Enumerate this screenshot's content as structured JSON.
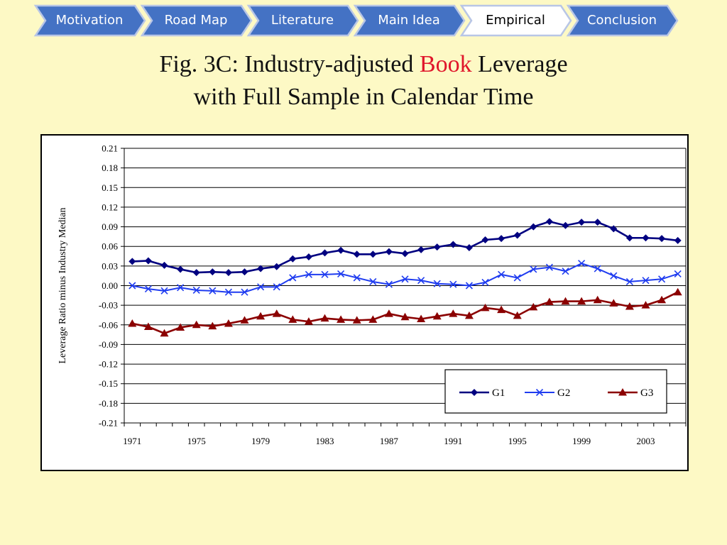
{
  "nav": {
    "tabs": [
      {
        "label": "Motivation",
        "active": false
      },
      {
        "label": "Road Map",
        "active": false
      },
      {
        "label": "Literature",
        "active": false
      },
      {
        "label": "Main Idea",
        "active": false
      },
      {
        "label": "Empirical",
        "active": true
      },
      {
        "label": "Conclusion",
        "active": false
      }
    ]
  },
  "title": {
    "line1_prefix": "Fig. 3C: Industry-adjusted ",
    "line1_highlight": "Book",
    "line1_suffix": " Leverage",
    "line2": "with Full Sample in Calendar Time"
  },
  "colors": {
    "background": "#fdf9c5",
    "nav_fill": "#4472c4",
    "nav_active_fill": "#ffffff",
    "title_highlight": "#e0162b",
    "g1": "#000080",
    "g2": "#1f3cf0",
    "g3": "#8b0000"
  },
  "chart_data": {
    "type": "line",
    "title": "",
    "xlabel": "",
    "ylabel": "Leverage Ratio minus Industry Median",
    "x": [
      1971,
      1972,
      1973,
      1974,
      1975,
      1976,
      1977,
      1978,
      1979,
      1980,
      1981,
      1982,
      1983,
      1984,
      1985,
      1986,
      1987,
      1988,
      1989,
      1990,
      1991,
      1992,
      1993,
      1994,
      1995,
      1996,
      1997,
      1998,
      1999,
      2000,
      2001,
      2002,
      2003,
      2004,
      2005
    ],
    "x_tick_labels": [
      "1971",
      "1975",
      "1979",
      "1983",
      "1987",
      "1991",
      "1995",
      "1999",
      "2003"
    ],
    "ylim": [
      -0.21,
      0.21
    ],
    "y_tick_labels": [
      "0.21",
      "0.18",
      "0.15",
      "0.12",
      "0.09",
      "0.06",
      "0.03",
      "0.00",
      "-0.03",
      "-0.06",
      "-0.09",
      "-0.12",
      "-0.15",
      "-0.18",
      "-0.21"
    ],
    "grid": "horizontal",
    "legend_position": "bottom-right",
    "series": [
      {
        "name": "G1",
        "marker": "diamond",
        "color": "#000080",
        "values": [
          0.037,
          0.038,
          0.031,
          0.025,
          0.02,
          0.021,
          0.02,
          0.021,
          0.026,
          0.029,
          0.041,
          0.044,
          0.05,
          0.054,
          0.048,
          0.048,
          0.052,
          0.049,
          0.055,
          0.059,
          0.063,
          0.058,
          0.07,
          0.072,
          0.077,
          0.09,
          0.098,
          0.092,
          0.097,
          0.097,
          0.087,
          0.073,
          0.073,
          0.072,
          0.069
        ]
      },
      {
        "name": "G2",
        "marker": "x",
        "color": "#1f3cf0",
        "values": [
          0.0,
          -0.005,
          -0.008,
          -0.003,
          -0.007,
          -0.008,
          -0.01,
          -0.01,
          -0.002,
          -0.002,
          0.012,
          0.017,
          0.017,
          0.018,
          0.012,
          0.006,
          0.002,
          0.01,
          0.008,
          0.003,
          0.002,
          0.0,
          0.005,
          0.017,
          0.012,
          0.025,
          0.028,
          0.022,
          0.034,
          0.026,
          0.015,
          0.006,
          0.008,
          0.01,
          0.018
        ]
      },
      {
        "name": "G3",
        "marker": "triangle",
        "color": "#8b0000",
        "values": [
          -0.058,
          -0.063,
          -0.073,
          -0.064,
          -0.06,
          -0.062,
          -0.058,
          -0.053,
          -0.047,
          -0.043,
          -0.052,
          -0.055,
          -0.05,
          -0.052,
          -0.053,
          -0.052,
          -0.043,
          -0.048,
          -0.051,
          -0.047,
          -0.043,
          -0.046,
          -0.034,
          -0.037,
          -0.046,
          -0.033,
          -0.025,
          -0.024,
          -0.024,
          -0.022,
          -0.027,
          -0.032,
          -0.03,
          -0.022,
          -0.01
        ]
      }
    ]
  }
}
